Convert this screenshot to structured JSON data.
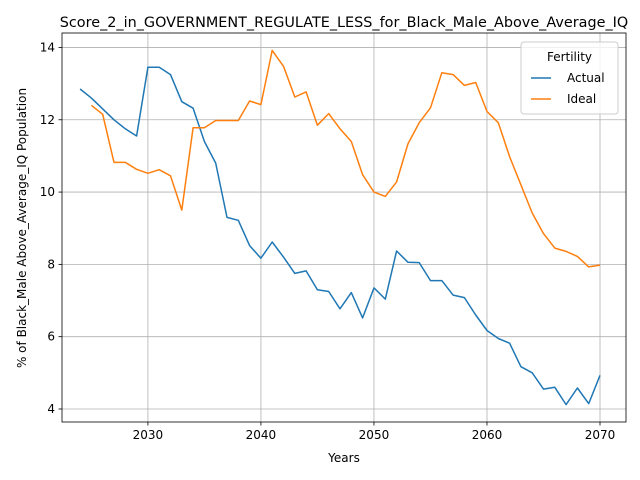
{
  "chart_data": {
    "type": "line",
    "title": "Score_2_in_GOVERNMENT_REGULATE_LESS_for_Black_Male_Above_Average_IQ",
    "xlabel": "Years",
    "ylabel": "% of Black_Male Above_Average_IQ Population",
    "xlim": [
      2022.4,
      2072.3
    ],
    "ylim": [
      3.64,
      14.4
    ],
    "xticks": [
      2030,
      2040,
      2050,
      2060,
      2070
    ],
    "yticks": [
      4,
      6,
      8,
      10,
      12,
      14
    ],
    "grid": true,
    "legend": {
      "title": "Fertility",
      "placement": "top-right"
    },
    "series": [
      {
        "name": "Actual",
        "color": "#1f77b4",
        "x": [
          2024,
          2025,
          2026,
          2027,
          2028,
          2029,
          2030,
          2031,
          2032,
          2033,
          2034,
          2035,
          2036,
          2037,
          2038,
          2039,
          2040,
          2041,
          2042,
          2043,
          2044,
          2045,
          2046,
          2047,
          2048,
          2049,
          2050,
          2051,
          2052,
          2053,
          2054,
          2055,
          2056,
          2057,
          2058,
          2059,
          2060,
          2061,
          2062,
          2063,
          2064,
          2065,
          2066,
          2067,
          2068,
          2069,
          2070
        ],
        "y": [
          12.85,
          12.6,
          12.3,
          12.0,
          11.75,
          11.55,
          13.45,
          13.45,
          13.25,
          12.5,
          12.32,
          11.4,
          10.8,
          9.3,
          9.22,
          8.52,
          8.17,
          8.62,
          8.2,
          7.75,
          7.82,
          7.3,
          7.25,
          6.77,
          7.22,
          6.52,
          7.35,
          7.04,
          8.37,
          8.06,
          8.05,
          7.55,
          7.55,
          7.15,
          7.08,
          6.6,
          6.17,
          5.95,
          5.82,
          5.17,
          5.0,
          4.55,
          4.6,
          4.12,
          4.58,
          4.15,
          4.93
        ]
      },
      {
        "name": "Ideal",
        "color": "#ff7f0e",
        "x": [
          2025,
          2026,
          2027,
          2028,
          2029,
          2030,
          2031,
          2032,
          2033,
          2034,
          2035,
          2036,
          2037,
          2038,
          2039,
          2040,
          2041,
          2042,
          2043,
          2044,
          2045,
          2046,
          2047,
          2048,
          2049,
          2050,
          2051,
          2052,
          2053,
          2054,
          2055,
          2056,
          2057,
          2058,
          2059,
          2060,
          2061,
          2062,
          2063,
          2064,
          2065,
          2066,
          2067,
          2068,
          2069,
          2070
        ],
        "y": [
          12.4,
          12.15,
          10.82,
          10.82,
          10.63,
          10.52,
          10.62,
          10.45,
          9.5,
          11.78,
          11.78,
          11.98,
          11.98,
          11.98,
          12.52,
          12.42,
          13.92,
          13.48,
          12.63,
          12.77,
          11.85,
          12.17,
          11.75,
          11.4,
          10.48,
          10.0,
          9.88,
          10.28,
          11.33,
          11.92,
          12.33,
          13.3,
          13.25,
          12.95,
          13.03,
          12.23,
          11.92,
          10.98,
          10.2,
          9.42,
          8.85,
          8.45,
          8.36,
          8.22,
          7.93,
          7.98
        ]
      }
    ]
  }
}
